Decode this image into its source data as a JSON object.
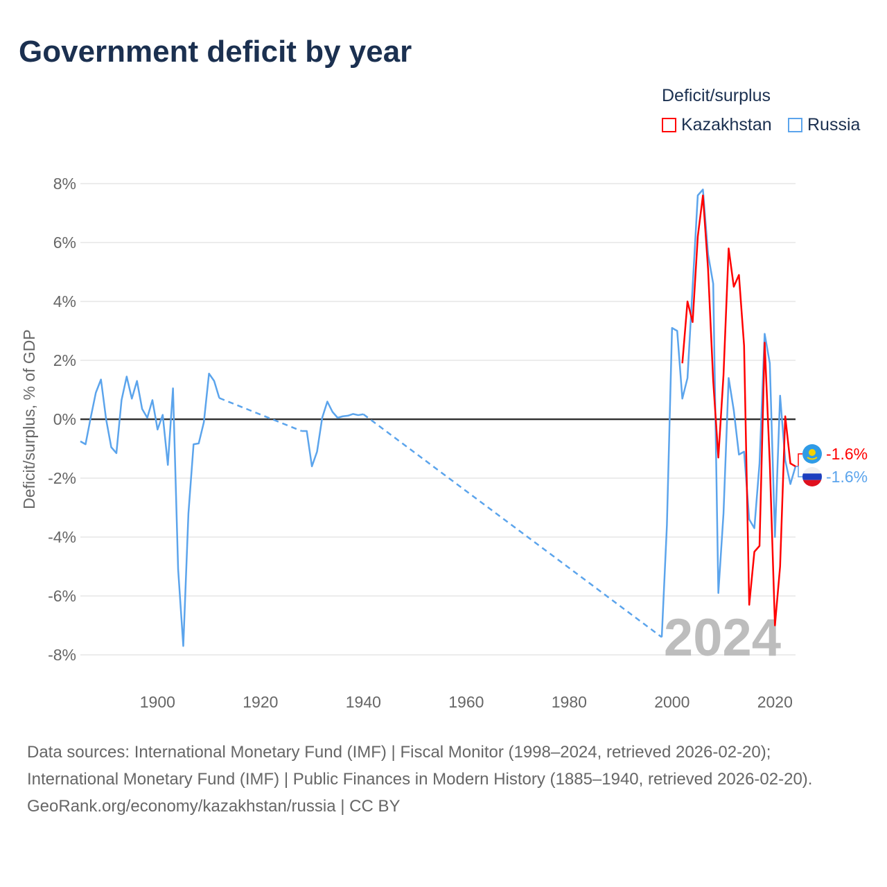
{
  "chart_data": {
    "type": "line",
    "title": "Government deficit by year",
    "ylabel": "Deficit/surplus, % of GDP",
    "xlabel": "",
    "xlim": [
      1885,
      2024
    ],
    "ylim": [
      -8,
      8
    ],
    "x_ticks": [
      1900,
      1920,
      1940,
      1960,
      1980,
      2000,
      2020
    ],
    "y_ticks": [
      -8,
      -6,
      -4,
      -2,
      0,
      2,
      4,
      6,
      8
    ],
    "y_tick_labels": [
      "-8%",
      "-6%",
      "-4%",
      "-2%",
      "0%",
      "2%",
      "4%",
      "6%",
      "8%"
    ],
    "grid": true,
    "legend_title": "Deficit/surplus",
    "legend_position": "top-right",
    "year_watermark": "2024",
    "series": [
      {
        "name": "Kazakhstan",
        "color": "#ff0000",
        "end_label": "-1.6%",
        "segments": [
          {
            "x": [
              2002,
              2003,
              2004,
              2005,
              2006,
              2007,
              2008,
              2009,
              2010,
              2011,
              2012,
              2013,
              2014,
              2015,
              2016,
              2017,
              2018,
              2019,
              2020,
              2021,
              2022,
              2023,
              2024
            ],
            "y": [
              1.9,
              4.0,
              3.3,
              6.2,
              7.6,
              5.1,
              1.3,
              -1.3,
              1.5,
              5.8,
              4.5,
              4.9,
              2.5,
              -6.3,
              -4.5,
              -4.3,
              2.6,
              -1.5,
              -7.0,
              -5.0,
              0.1,
              -1.5,
              -1.6
            ]
          }
        ]
      },
      {
        "name": "Russia",
        "color": "#5ba4ec",
        "end_label": "-1.6%",
        "segments": [
          {
            "x": [
              1885,
              1886,
              1887,
              1888,
              1889,
              1890,
              1891,
              1892,
              1893,
              1894,
              1895,
              1896,
              1897,
              1898,
              1899,
              1900,
              1901,
              1902,
              1903,
              1904,
              1905,
              1906,
              1907,
              1908,
              1909,
              1910,
              1911,
              1912
            ],
            "y": [
              -0.75,
              -0.85,
              0.05,
              0.9,
              1.35,
              0.0,
              -0.95,
              -1.15,
              0.65,
              1.45,
              0.7,
              1.3,
              0.35,
              0.05,
              0.65,
              -0.35,
              0.15,
              -1.55,
              1.05,
              -5.1,
              -7.7,
              -3.2,
              -0.85,
              -0.82,
              -0.1,
              1.55,
              1.3,
              0.72
            ]
          },
          {
            "x": [
              1928,
              1929,
              1930,
              1931,
              1932,
              1933,
              1934,
              1935,
              1936,
              1937,
              1938,
              1939,
              1940
            ],
            "y": [
              -0.4,
              -0.4,
              -1.6,
              -1.1,
              0.05,
              0.6,
              0.25,
              0.05,
              0.1,
              0.12,
              0.18,
              0.14,
              0.17
            ]
          },
          {
            "x": [
              1998,
              1999,
              2000,
              2001,
              2002,
              2003,
              2004,
              2005,
              2006,
              2007,
              2008,
              2009,
              2010,
              2011,
              2012,
              2013,
              2014,
              2015,
              2016,
              2017,
              2018,
              2019,
              2020,
              2021,
              2022,
              2023,
              2024
            ],
            "y": [
              -7.4,
              -3.6,
              3.1,
              3.0,
              0.7,
              1.4,
              4.5,
              7.6,
              7.8,
              5.6,
              4.6,
              -5.9,
              -3.2,
              1.4,
              0.3,
              -1.2,
              -1.1,
              -3.4,
              -3.7,
              -1.5,
              2.9,
              1.9,
              -4.0,
              0.8,
              -1.4,
              -2.2,
              -1.6
            ]
          }
        ]
      }
    ]
  },
  "footer": {
    "sources": "Data sources: International Monetary Fund (IMF) | Fiscal Monitor (1998–2024, retrieved 2026-02-20); International Monetary Fund (IMF) | Public Finances in Modern History (1885–1940, retrieved 2026-02-20).",
    "credit": "GeoRank.org/economy/kazakhstan/russia | CC BY"
  }
}
